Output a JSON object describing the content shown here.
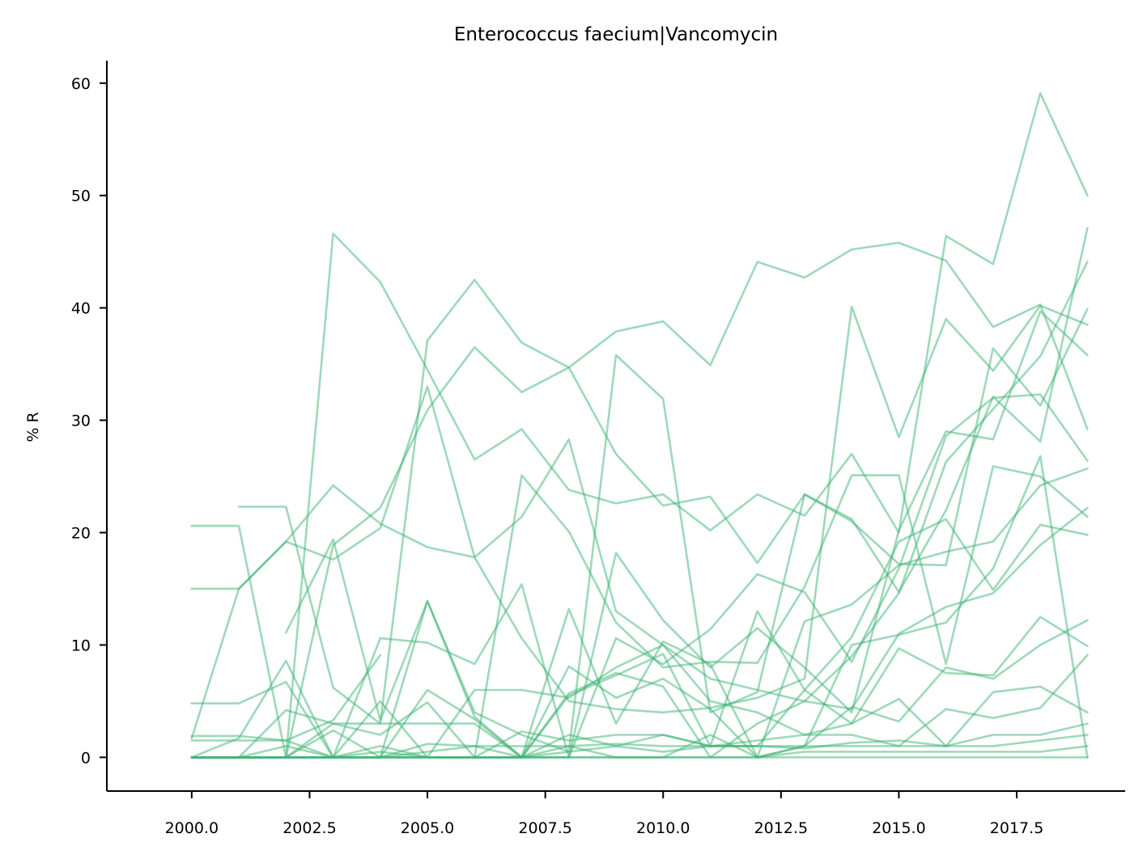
{
  "chart_data": {
    "type": "line",
    "title": "Enterococcus faecium|Vancomycin",
    "xlabel": "",
    "ylabel": "% R",
    "xlim": [
      1998.2,
      2019.8
    ],
    "ylim": [
      -3,
      62
    ],
    "xticks": [
      2000.0,
      2002.5,
      2005.0,
      2007.5,
      2010.0,
      2012.5,
      2015.0,
      2017.5
    ],
    "xtick_labels": [
      "2000.0",
      "2002.5",
      "2005.0",
      "2007.5",
      "2010.0",
      "2012.5",
      "2015.0",
      "2017.5"
    ],
    "yticks": [
      0,
      10,
      20,
      30,
      40,
      50,
      60
    ],
    "ytick_labels": [
      "0",
      "10",
      "20",
      "30",
      "40",
      "50",
      "60"
    ],
    "grid": false,
    "line_color": "#3cb371",
    "line_opacity": 0.5,
    "x": [
      2000,
      2001,
      2002,
      2003,
      2004,
      2005,
      2006,
      2007,
      2008,
      2009,
      2010,
      2011,
      2012,
      2013,
      2014,
      2015,
      2016,
      2017,
      2018,
      2019
    ],
    "series": [
      {
        "values": [
          0,
          0,
          0,
          46.6,
          42.3,
          34.5,
          26.5,
          29.2,
          23.8,
          22.6,
          23.4,
          20.2,
          23.4,
          21.5,
          27.0,
          20.0,
          46.4,
          43.9,
          59.1,
          50.0
        ]
      },
      {
        "values": [
          null,
          22.3,
          22.3,
          6.2,
          3.0,
          37.1,
          42.5,
          36.9,
          34.7,
          37.9,
          38.8,
          34.9,
          44.1,
          42.7,
          45.2,
          45.8,
          44.2,
          38.3,
          40.3,
          29.2
        ]
      },
      {
        "values": [
          15.0,
          15.0,
          19.2,
          17.6,
          20.4,
          33.0,
          17.8,
          10.6,
          5.0,
          4.3,
          4.0,
          4.4,
          5.3,
          7.0,
          40.1,
          28.5,
          39.0,
          34.4,
          40.2,
          38.5
        ]
      },
      {
        "values": [
          20.6,
          20.6,
          0,
          18.9,
          22.2,
          30.9,
          36.5,
          32.5,
          34.7,
          27.0,
          22.4,
          23.2,
          17.3,
          23.4,
          21.0,
          17.2,
          17.1,
          36.4,
          31.3,
          39.9
        ]
      },
      {
        "values": [
          4.8,
          4.8,
          6.7,
          0,
          0,
          13.9,
          4.0,
          2.0,
          0.5,
          35.8,
          31.9,
          4.0,
          5.8,
          23.4,
          21.2,
          14.7,
          22.0,
          32.1,
          28.1,
          47.1
        ]
      },
      {
        "values": [
          1.7,
          15.0,
          19.2,
          24.2,
          20.8,
          18.7,
          17.8,
          21.4,
          28.3,
          13.0,
          10.0,
          7.0,
          6.0,
          5.0,
          9.0,
          14.6,
          26.3,
          31.0,
          35.7,
          44.1
        ]
      },
      {
        "values": [
          null,
          null,
          11.1,
          19.4,
          3.3,
          13.9,
          3.6,
          0,
          0,
          18.2,
          12.2,
          8.0,
          11.5,
          8.0,
          4.0,
          20.2,
          29.0,
          28.3,
          39.7,
          35.8
        ]
      },
      {
        "values": [
          0,
          1.7,
          8.6,
          0,
          10.6,
          10.2,
          8.3,
          15.4,
          0,
          10.6,
          8.3,
          11.4,
          16.3,
          14.7,
          8.5,
          16.8,
          28.6,
          32.0,
          32.3,
          26.4
        ]
      },
      {
        "values": [
          1.9,
          1.9,
          1.5,
          3.3,
          9.1,
          null,
          0,
          25.1,
          20.1,
          12.0,
          8.0,
          8.5,
          8.4,
          15.2,
          25.1,
          25.1,
          8.3,
          25.9,
          25.0,
          21.4
        ]
      },
      {
        "values": [
          0,
          0,
          4.2,
          3.0,
          3.0,
          3.0,
          3.0,
          0,
          13.2,
          3.0,
          10.3,
          8.3,
          0,
          12.1,
          13.6,
          17.1,
          18.3,
          19.2,
          24.2,
          25.7
        ]
      },
      {
        "values": [
          1.5,
          1.5,
          1.5,
          0,
          5.0,
          0,
          0,
          0,
          5.5,
          7.3,
          9.2,
          1.0,
          13.0,
          6.0,
          10.7,
          19.2,
          21.2,
          14.9,
          20.7,
          19.8
        ]
      },
      {
        "values": [
          0,
          0,
          0,
          2.4,
          0,
          6.0,
          3.4,
          0,
          5.7,
          7.5,
          6.3,
          0,
          3.0,
          5.0,
          4.3,
          11.0,
          13.4,
          14.6,
          18.9,
          22.2
        ]
      },
      {
        "values": [
          0,
          0,
          0,
          3.0,
          2.0,
          4.9,
          0,
          0,
          8.1,
          5.3,
          7.0,
          4.3,
          0,
          1.0,
          10.0,
          10.9,
          12.0,
          16.8,
          26.8,
          0
        ]
      },
      {
        "values": [
          0,
          0,
          0,
          0,
          1.0,
          0,
          6.0,
          6.0,
          5.3,
          8.0,
          10.0,
          5.0,
          4.0,
          2.0,
          3.0,
          9.7,
          7.5,
          7.3,
          12.5,
          9.9
        ]
      },
      {
        "values": [
          0,
          0,
          0,
          0,
          0,
          1.2,
          1.0,
          0,
          2.0,
          1.0,
          2.0,
          1.0,
          1.0,
          6.0,
          3.0,
          5.2,
          1.0,
          5.8,
          6.3,
          4.0
        ]
      },
      {
        "values": [
          0,
          0,
          1.0,
          0,
          0,
          0,
          0,
          0,
          1.0,
          0,
          0,
          2.0,
          0,
          1.0,
          4.5,
          3.2,
          8.0,
          7.0,
          10.0,
          12.2
        ]
      },
      {
        "values": [
          0,
          0,
          0,
          0,
          0,
          0,
          0,
          2.3,
          1.5,
          2.0,
          2.0,
          1.0,
          1.5,
          2.0,
          2.0,
          1.0,
          4.3,
          3.5,
          4.4,
          9.1
        ]
      },
      {
        "values": [
          0,
          0,
          0,
          0,
          0,
          0.5,
          1.0,
          1.0,
          1.0,
          1.2,
          1.0,
          1.0,
          1.0,
          0.8,
          1.3,
          1.5,
          1.0,
          2.0,
          2.0,
          3.0
        ]
      },
      {
        "values": [
          0,
          0,
          0,
          0,
          0.5,
          0,
          0,
          0,
          0.5,
          1.0,
          0.5,
          1.0,
          1.0,
          1.0,
          1.0,
          1.0,
          1.0,
          1.0,
          1.5,
          2.0
        ]
      },
      {
        "values": [
          0,
          0,
          0,
          0,
          0,
          0,
          0,
          0,
          0,
          0,
          0,
          0,
          0,
          0.5,
          0.5,
          0.5,
          0.5,
          0.5,
          0.5,
          1.0
        ]
      },
      {
        "values": [
          0,
          0,
          0,
          0,
          0,
          0,
          0,
          0,
          0,
          0,
          0,
          0,
          0,
          0,
          0,
          0,
          0,
          0,
          0,
          0
        ]
      }
    ]
  }
}
